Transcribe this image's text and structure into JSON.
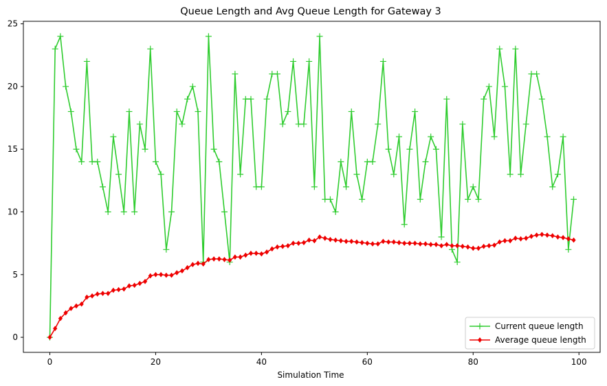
{
  "chart_data": {
    "type": "line",
    "title": "Queue Length and Avg Queue Length for Gateway 3",
    "xlabel": "Simulation Time",
    "ylabel": "",
    "xlim": [
      -5,
      104
    ],
    "ylim": [
      -1.2,
      25.2
    ],
    "xticks": [
      0,
      20,
      40,
      60,
      80,
      100
    ],
    "yticks": [
      0,
      5,
      10,
      15,
      20,
      25
    ],
    "grid": false,
    "legend_position": "lower-right",
    "x": [
      0,
      1,
      2,
      3,
      4,
      5,
      6,
      7,
      8,
      9,
      10,
      11,
      12,
      13,
      14,
      15,
      16,
      17,
      18,
      19,
      20,
      21,
      22,
      23,
      24,
      25,
      26,
      27,
      28,
      29,
      30,
      31,
      32,
      33,
      34,
      35,
      36,
      37,
      38,
      39,
      40,
      41,
      42,
      43,
      44,
      45,
      46,
      47,
      48,
      49,
      50,
      51,
      52,
      53,
      54,
      55,
      56,
      57,
      58,
      59,
      60,
      61,
      62,
      63,
      64,
      65,
      66,
      67,
      68,
      69,
      70,
      71,
      72,
      73,
      74,
      75,
      76,
      77,
      78,
      79,
      80,
      81,
      82,
      83,
      84,
      85,
      86,
      87,
      88,
      89,
      90,
      91,
      92,
      93,
      94,
      95,
      96,
      97,
      98,
      99
    ],
    "series": [
      {
        "name": "Current queue length",
        "color": "#2ecc2e",
        "marker": "plus",
        "values": [
          0,
          23,
          24,
          20,
          18,
          15,
          14,
          22,
          14,
          14,
          12,
          10,
          16,
          13,
          10,
          18,
          10,
          17,
          15,
          23,
          14,
          13,
          7,
          10,
          18,
          17,
          19,
          20,
          18,
          6,
          24,
          15,
          14,
          10,
          6,
          21,
          13,
          19,
          19,
          12,
          12,
          19,
          21,
          21,
          17,
          18,
          22,
          17,
          17,
          22,
          12,
          24,
          11,
          11,
          10,
          14,
          12,
          18,
          13,
          11,
          14,
          14,
          17,
          22,
          15,
          13,
          16,
          9,
          15,
          18,
          11,
          14,
          16,
          15,
          8,
          19,
          7,
          6,
          17,
          11,
          12,
          11,
          19,
          20,
          16,
          23,
          20,
          13,
          23,
          13,
          17,
          21,
          21,
          19,
          16,
          12,
          13,
          16,
          7,
          11
        ]
      },
      {
        "name": "Average queue length",
        "color": "#ee0000",
        "marker": "diamond",
        "values": [
          0,
          0.7,
          1.5,
          1.95,
          2.3,
          2.5,
          2.65,
          3.2,
          3.3,
          3.45,
          3.5,
          3.5,
          3.75,
          3.8,
          3.85,
          4.1,
          4.15,
          4.3,
          4.45,
          4.9,
          5.0,
          5.0,
          4.95,
          4.95,
          5.15,
          5.3,
          5.55,
          5.8,
          5.9,
          5.85,
          6.2,
          6.25,
          6.25,
          6.2,
          6.15,
          6.4,
          6.4,
          6.55,
          6.7,
          6.7,
          6.65,
          6.8,
          7.05,
          7.2,
          7.25,
          7.3,
          7.5,
          7.5,
          7.55,
          7.75,
          7.7,
          8.0,
          7.9,
          7.8,
          7.75,
          7.7,
          7.65,
          7.65,
          7.6,
          7.55,
          7.5,
          7.45,
          7.45,
          7.65,
          7.6,
          7.6,
          7.55,
          7.5,
          7.5,
          7.5,
          7.45,
          7.45,
          7.4,
          7.4,
          7.3,
          7.4,
          7.3,
          7.3,
          7.25,
          7.2,
          7.1,
          7.1,
          7.25,
          7.3,
          7.35,
          7.6,
          7.7,
          7.7,
          7.9,
          7.85,
          7.9,
          8.05,
          8.15,
          8.2,
          8.15,
          8.1,
          8.0,
          7.95,
          7.85,
          7.75
        ]
      }
    ]
  }
}
